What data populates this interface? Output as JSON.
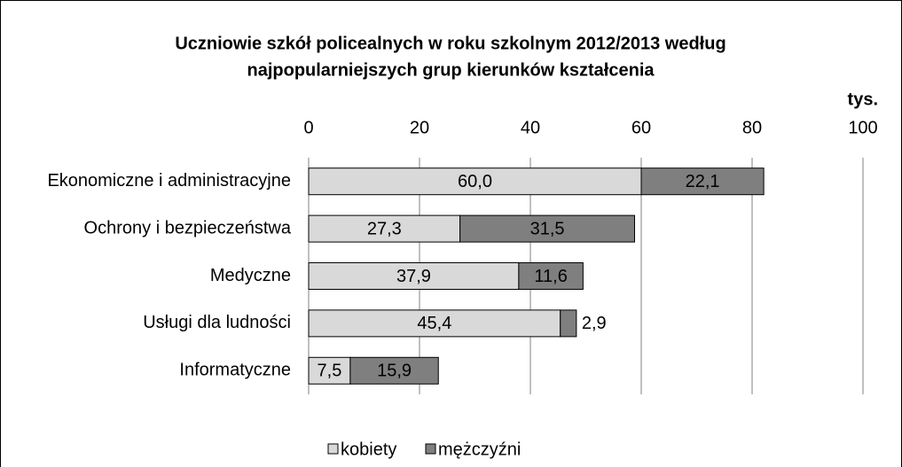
{
  "chart_data": {
    "type": "stacked-barh",
    "title": "Uczniowie szkół policealnych w roku szkolnym 2012/2013 według",
    "subtitle": "najpopularniejszych grup kierunków kształcenia",
    "x_label": "tys.",
    "categories": [
      "Ekonomiczne i administracyjne",
      "Ochrony i bezpieczeństwa",
      "Medyczne",
      "Usługi dla ludności",
      "Informatyczne"
    ],
    "series": [
      {
        "name": "kobiety",
        "color": "#d9d9d9",
        "values": [
          60.0,
          27.3,
          37.9,
          45.4,
          7.5
        ],
        "value_labels": [
          "60,0",
          "27,3",
          "37,9",
          "45,4",
          "7,5"
        ]
      },
      {
        "name": "mężczyźni",
        "color": "#7f7f7f",
        "values": [
          22.1,
          31.5,
          11.6,
          2.9,
          15.9
        ],
        "value_labels": [
          "22,1",
          "31,5",
          "11,6",
          "2,9",
          "15,9"
        ]
      }
    ],
    "xlim": [
      0,
      100
    ],
    "xticks": [
      0,
      20,
      40,
      60,
      80,
      100
    ],
    "grid": true,
    "legend": "bottom"
  }
}
